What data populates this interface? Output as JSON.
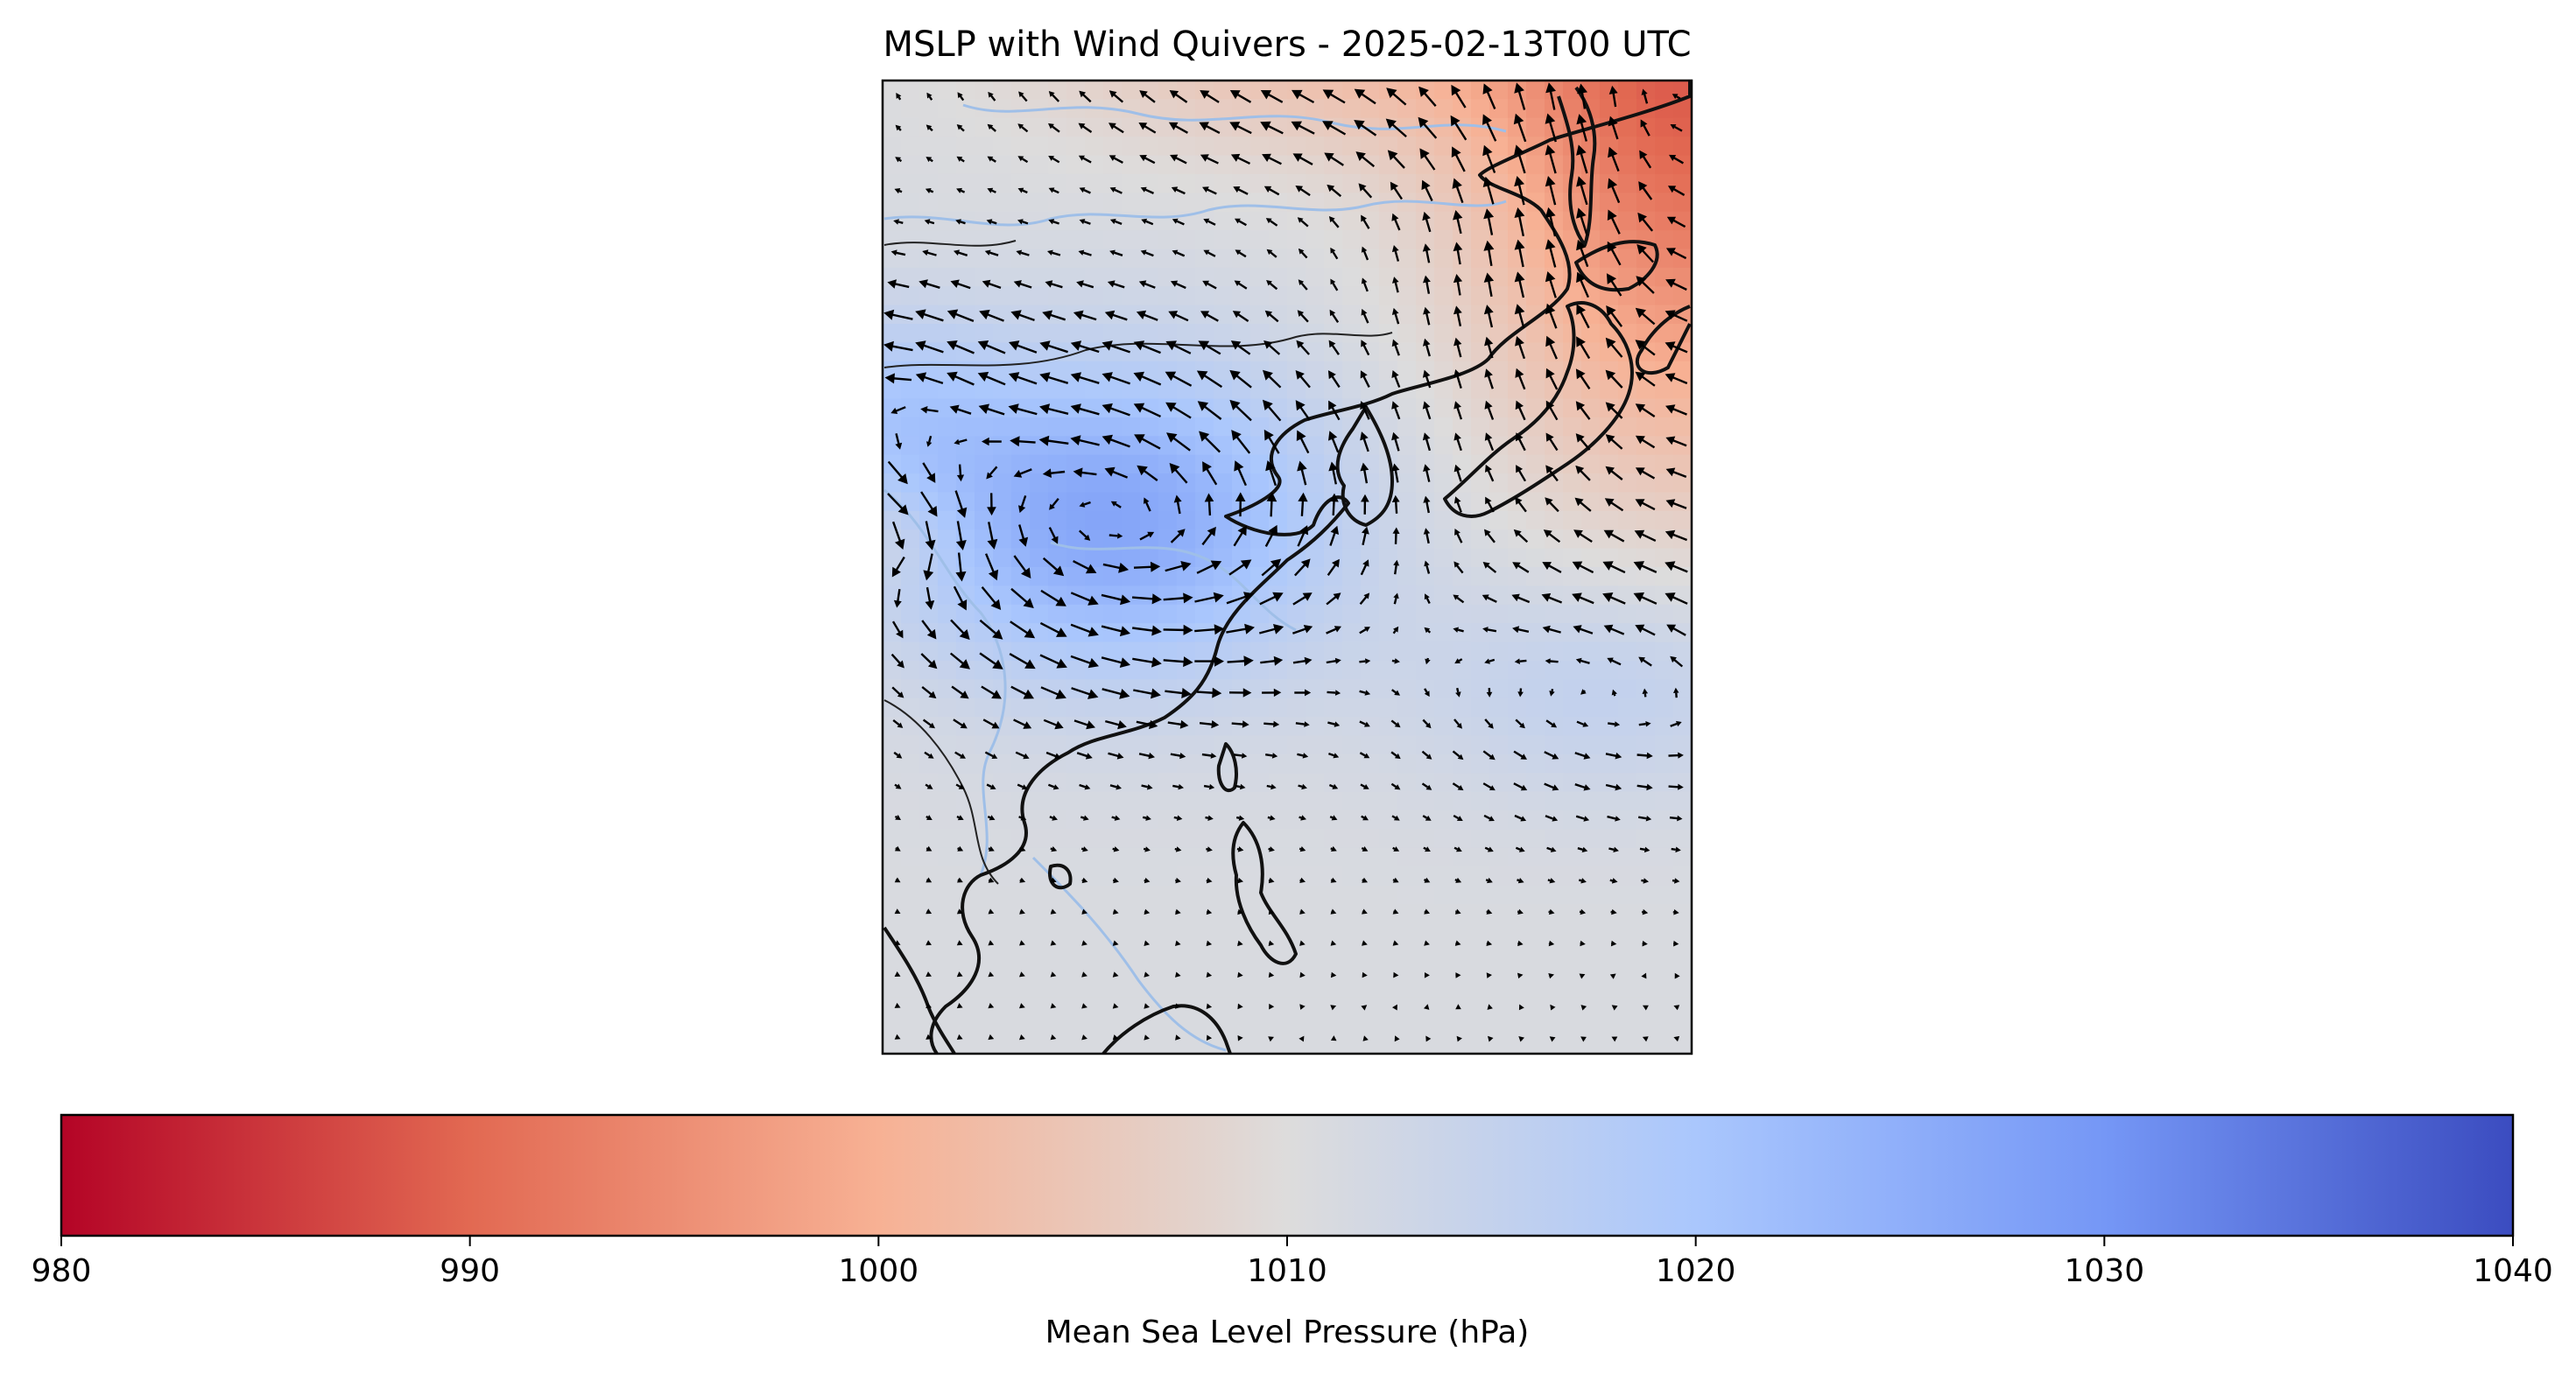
{
  "chart_data": {
    "type": "heatmap",
    "title": "MSLP with Wind Quivers - 2025-02-13T00 UTC",
    "overlay": "wind-quiver",
    "colormap": "coolwarm_r",
    "colors_endpoints": {
      "low": "#b40426",
      "mid": "#dddcdc",
      "high": "#3b4cc0"
    },
    "colorbar": {
      "label": "Mean Sea Level Pressure (hPa)",
      "range": [
        980,
        1040
      ],
      "ticks": [
        980,
        990,
        1000,
        1010,
        1020,
        1030,
        1040
      ],
      "tick_labels": [
        "980",
        "990",
        "1000",
        "1010",
        "1020",
        "1030",
        "1040"
      ],
      "orientation": "horizontal",
      "placement": "bottom"
    },
    "pressure_features": [
      {
        "kind": "low",
        "region": "northeast corner",
        "value": 990
      },
      {
        "kind": "high",
        "region": "central east China",
        "value": 1028
      },
      {
        "kind": "high",
        "region": "west of map",
        "value": 1024
      }
    ],
    "grid": false,
    "axes_ticks": false
  }
}
